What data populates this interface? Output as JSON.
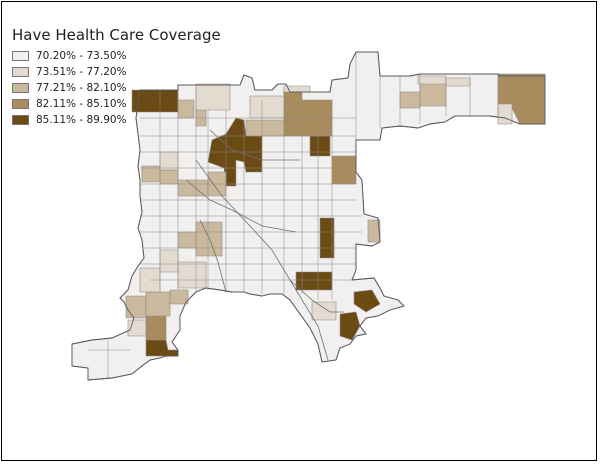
{
  "title": "Have Health Care Coverage",
  "legend": [
    {
      "label": "70.20% - 73.50%",
      "color": "#f2f0ee"
    },
    {
      "label": "73.51% - 77.20%",
      "color": "#e4dbd0"
    },
    {
      "label": "77.21% - 82.10%",
      "color": "#cbb99e"
    },
    {
      "label": "82.11% - 85.10%",
      "color": "#a88c5e"
    },
    {
      "label": "85.11% - 89.90%",
      "color": "#6b4a14"
    }
  ],
  "map": {
    "outline_color": "#5a5a5a",
    "tract_line_color": "#8a8a8a"
  }
}
